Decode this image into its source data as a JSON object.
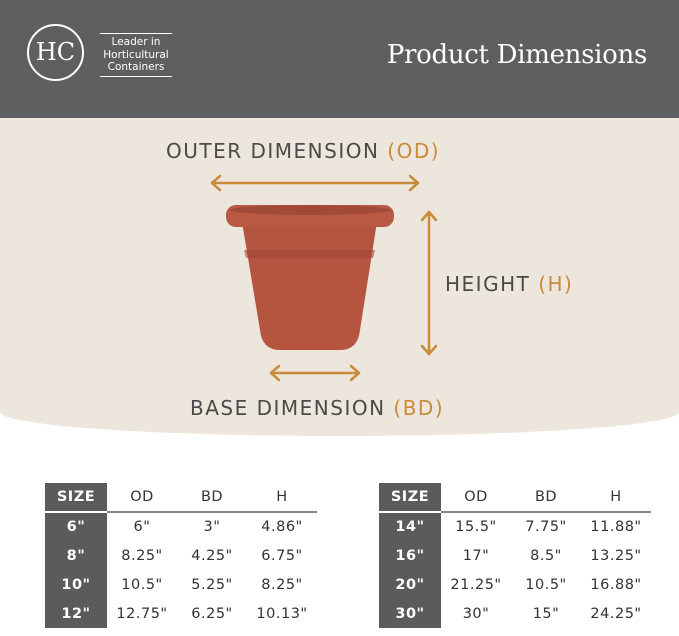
{
  "header": {
    "logo_text": "HC",
    "tagline": [
      "Leader in",
      "Horticultural",
      "Containers"
    ],
    "title": "Product Dimensions"
  },
  "diagram": {
    "outer": {
      "label": "OUTER DIMENSION",
      "abbr": "(OD)"
    },
    "height": {
      "label": "HEIGHT",
      "abbr": "(H)"
    },
    "base": {
      "label": "BASE DIMENSION",
      "abbr": "(BD)"
    },
    "colors": {
      "accent": "#c98a3a",
      "pot": "#b5553f",
      "header": "#5e5f61",
      "background": "#ede6dc"
    }
  },
  "tables": [
    {
      "headers": [
        "SIZE",
        "OD",
        "BD",
        "H"
      ],
      "rows": [
        [
          "6\"",
          "6\"",
          "3\"",
          "4.86\""
        ],
        [
          "8\"",
          "8.25\"",
          "4.25\"",
          "6.75\""
        ],
        [
          "10\"",
          "10.5\"",
          "5.25\"",
          "8.25\""
        ],
        [
          "12\"",
          "12.75\"",
          "6.25\"",
          "10.13\""
        ]
      ]
    },
    {
      "headers": [
        "SIZE",
        "OD",
        "BD",
        "H"
      ],
      "rows": [
        [
          "14\"",
          "15.5\"",
          "7.75\"",
          "11.88\""
        ],
        [
          "16\"",
          "17\"",
          "8.5\"",
          "13.25\""
        ],
        [
          "20\"",
          "21.25\"",
          "10.5\"",
          "16.88\""
        ],
        [
          "30\"",
          "30\"",
          "15\"",
          "24.25\""
        ]
      ]
    }
  ]
}
